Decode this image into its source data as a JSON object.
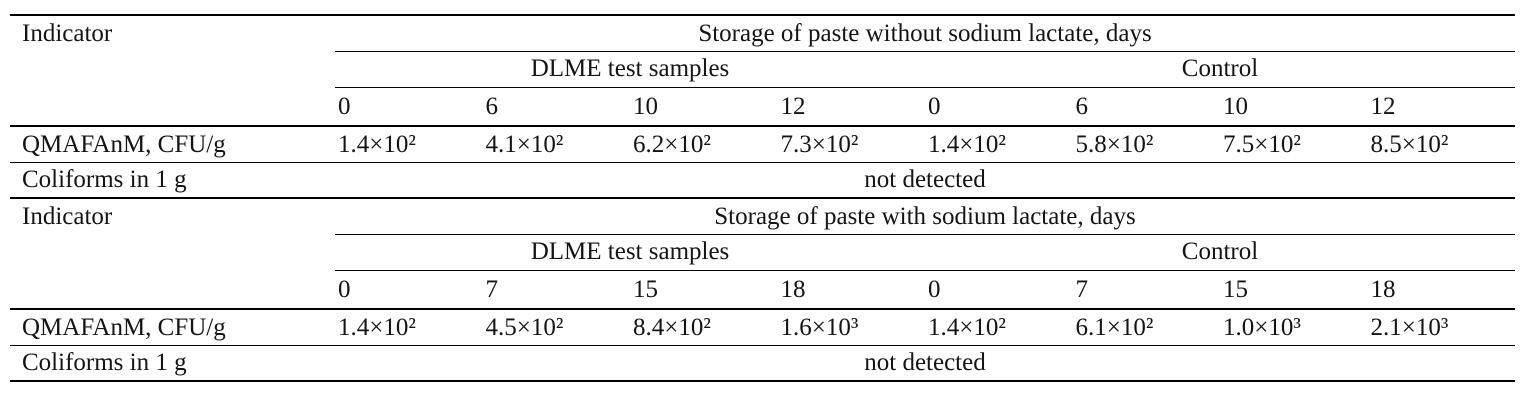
{
  "colors": {
    "background": "#ffffff",
    "text": "#141414",
    "rule": "#000000"
  },
  "table": {
    "blocks": [
      {
        "indicator_label": "Indicator",
        "storage_header": "Storage of paste without sodium lactate, days",
        "group1_header": "DLME test samples",
        "group2_header": "Control",
        "days": [
          "0",
          "6",
          "10",
          "12",
          "0",
          "6",
          "10",
          "12"
        ],
        "qmafanm": {
          "label": "QMAFAnM, CFU/g",
          "values": [
            "1.4×10²",
            "4.1×10²",
            "6.2×10²",
            "7.3×10²",
            "1.4×10²",
            "5.8×10²",
            "7.5×10²",
            "8.5×10²"
          ]
        },
        "coliforms": {
          "label": "Coliforms in 1 g",
          "value": "not detected"
        }
      },
      {
        "indicator_label": "Indicator",
        "storage_header": "Storage of paste with sodium lactate, days",
        "group1_header": "DLME test samples",
        "group2_header": "Control",
        "days": [
          "0",
          "7",
          "15",
          "18",
          "0",
          "7",
          "15",
          "18"
        ],
        "qmafanm": {
          "label": "QMAFAnM, CFU/g",
          "values": [
            "1.4×10²",
            "4.5×10²",
            "8.4×10²",
            "1.6×10³",
            "1.4×10²",
            "6.1×10²",
            "1.0×10³",
            "2.1×10³"
          ]
        },
        "coliforms": {
          "label": "Coliforms in 1 g",
          "value": "not detected"
        }
      }
    ]
  }
}
